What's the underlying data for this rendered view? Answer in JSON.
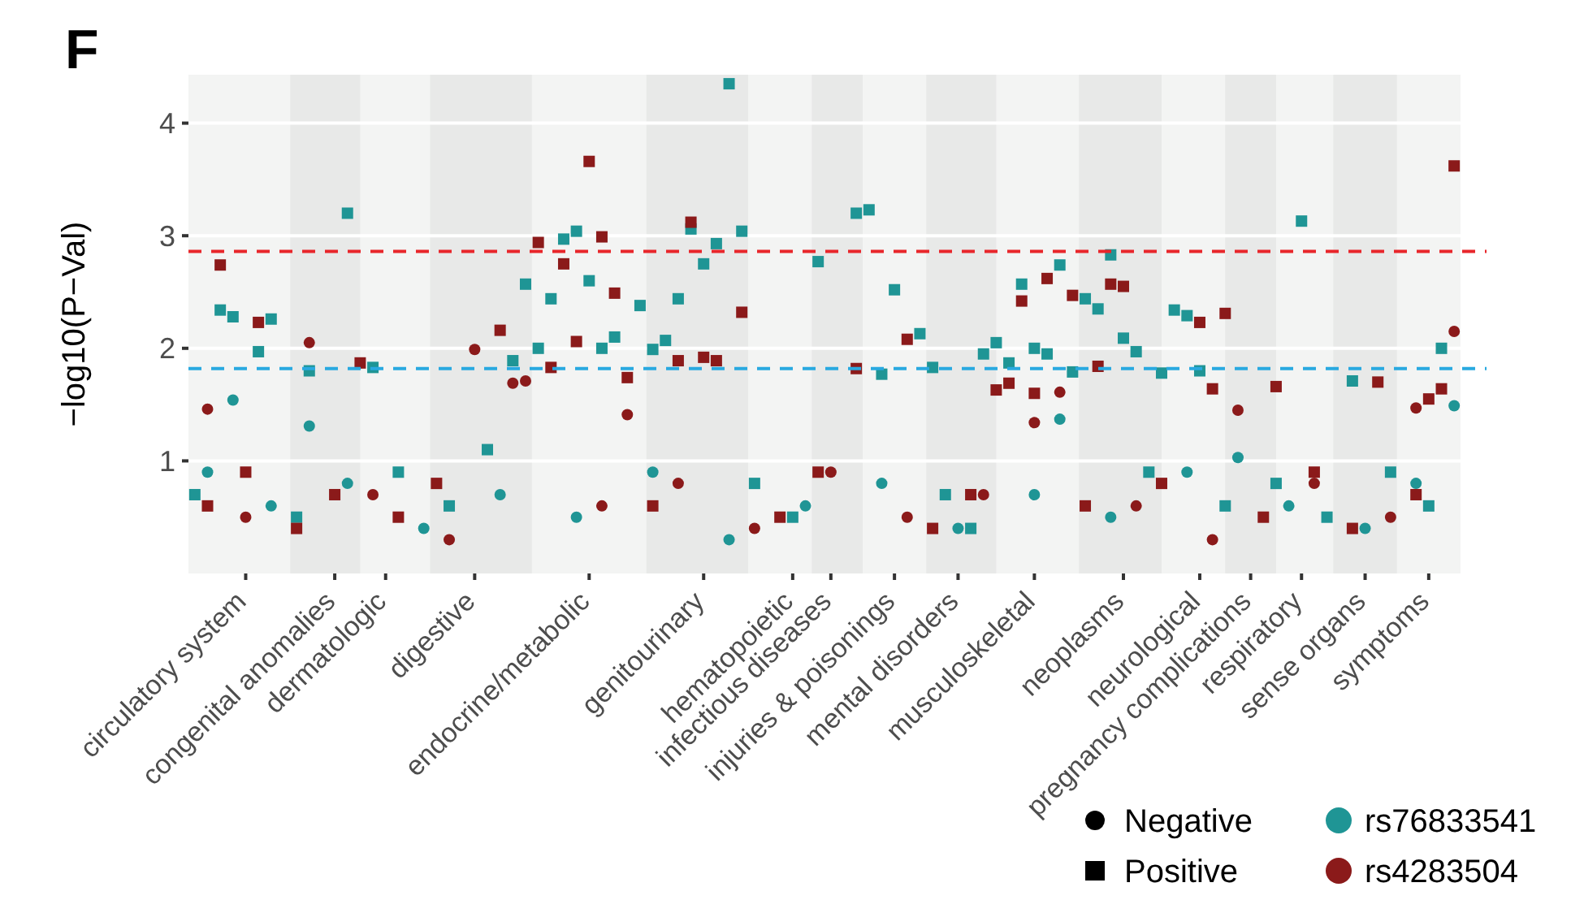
{
  "chart_data": {
    "type": "scatter",
    "title": "F",
    "ylabel": "−log10(P−Val)",
    "categories": [
      null,
      null,
      null,
      null,
      "circulatory system",
      null,
      null,
      null,
      null,
      null,
      null,
      "congenital anomalies",
      null,
      null,
      null,
      "dermatologic",
      null,
      null,
      null,
      null,
      null,
      null,
      "digestive",
      null,
      null,
      null,
      null,
      null,
      null,
      null,
      null,
      "endocrine/metabolic",
      null,
      null,
      null,
      null,
      null,
      null,
      null,
      null,
      "genitourinary",
      null,
      null,
      null,
      null,
      null,
      null,
      "hematopoietic",
      null,
      null,
      "infectious diseases",
      null,
      null,
      null,
      null,
      "injuries & poisonings",
      null,
      null,
      null,
      null,
      "mental disorders",
      null,
      null,
      null,
      null,
      null,
      "musculoskeletal",
      null,
      null,
      null,
      null,
      null,
      null,
      "neoplasms",
      null,
      null,
      null,
      null,
      null,
      "neurological",
      null,
      null,
      null,
      "pregnancy complications",
      null,
      null,
      null,
      "respiratory",
      null,
      null,
      null,
      null,
      "sense organs",
      null,
      null,
      null,
      null,
      "symptoms",
      null,
      null
    ],
    "ylim": [
      0,
      4.43
    ],
    "yticks": [
      1,
      2,
      3,
      4
    ],
    "grid": "y",
    "legend": "bottom right",
    "annotations": [
      "Negative",
      "Positive"
    ],
    "ref_lines": [
      {
        "axis": "y",
        "value": 2.86,
        "color": "#e8262b",
        "line_style": "dashed"
      },
      {
        "axis": "y",
        "value": 1.82,
        "color": "#29a9e0",
        "line_style": "dashed"
      }
    ],
    "series": [
      {
        "name": "rs76833541",
        "type": "scatter",
        "marker": "circle",
        "color": "#1f9595",
        "values": [
          null,
          0.9,
          null,
          1.54,
          null,
          null,
          0.6,
          null,
          null,
          1.31,
          null,
          null,
          0.8,
          null,
          null,
          null,
          null,
          null,
          0.4,
          null,
          null,
          null,
          null,
          null,
          0.7,
          null,
          null,
          null,
          null,
          null,
          0.5,
          null,
          null,
          null,
          null,
          null,
          0.9,
          null,
          null,
          null,
          null,
          null,
          0.3,
          null,
          null,
          null,
          null,
          null,
          0.6,
          null,
          null,
          null,
          null,
          null,
          0.8,
          null,
          null,
          null,
          null,
          null,
          0.4,
          null,
          null,
          null,
          null,
          null,
          0.7,
          null,
          1.37,
          null,
          null,
          null,
          0.5,
          null,
          null,
          null,
          null,
          null,
          0.9,
          null,
          null,
          null,
          1.03,
          null,
          null,
          null,
          0.6,
          null,
          null,
          null,
          null,
          null,
          0.4,
          null,
          null,
          null,
          0.8,
          null,
          null,
          1.49
        ]
      },
      {
        "name": "rs4283504",
        "type": "scatter",
        "marker": "circle",
        "color": "#8b1a1a",
        "values": [
          null,
          1.46,
          null,
          null,
          0.5,
          null,
          null,
          null,
          null,
          2.05,
          null,
          null,
          null,
          null,
          0.7,
          null,
          null,
          null,
          null,
          null,
          0.3,
          null,
          1.99,
          null,
          null,
          1.69,
          1.71,
          null,
          null,
          null,
          null,
          null,
          0.6,
          null,
          1.41,
          null,
          null,
          null,
          0.8,
          null,
          null,
          null,
          null,
          null,
          0.4,
          null,
          null,
          null,
          null,
          null,
          0.9,
          null,
          null,
          null,
          null,
          null,
          0.5,
          null,
          null,
          null,
          null,
          null,
          0.7,
          null,
          null,
          null,
          1.34,
          null,
          1.61,
          null,
          null,
          null,
          null,
          null,
          0.6,
          null,
          null,
          null,
          null,
          null,
          0.3,
          null,
          1.45,
          null,
          null,
          null,
          null,
          null,
          0.8,
          null,
          null,
          null,
          null,
          null,
          0.5,
          null,
          1.47,
          null,
          null,
          2.15
        ]
      },
      {
        "type": "scatter",
        "marker": "square",
        "color": "#1f9595",
        "values": [
          0.7,
          null,
          2.34,
          2.28,
          null,
          1.97,
          2.26,
          null,
          0.5,
          1.8,
          null,
          null,
          3.2,
          null,
          1.83,
          null,
          0.9,
          null,
          null,
          null,
          0.6,
          null,
          null,
          1.1,
          null,
          1.89,
          2.57,
          2.0,
          2.44,
          2.97,
          3.04,
          2.6,
          2.0,
          2.1,
          null,
          2.38,
          1.99,
          2.07,
          2.44,
          3.06,
          2.75,
          2.93,
          4.35,
          3.04,
          0.8,
          null,
          null,
          0.5,
          null,
          2.77,
          null,
          null,
          3.2,
          3.23,
          1.77,
          2.52,
          null,
          2.13,
          1.83,
          0.7,
          null,
          0.4,
          1.95,
          2.05,
          1.87,
          2.57,
          2.0,
          1.95,
          2.74,
          1.79,
          2.44,
          2.35,
          2.83,
          2.09,
          1.97,
          0.9,
          1.78,
          2.34,
          2.29,
          1.8,
          null,
          0.6,
          null,
          null,
          null,
          0.8,
          null,
          3.13,
          null,
          0.5,
          null,
          1.71,
          null,
          null,
          0.9,
          null,
          null,
          0.6,
          2.0,
          null
        ]
      },
      {
        "type": "scatter",
        "marker": "square",
        "color": "#8b1a1a",
        "values": [
          null,
          0.6,
          2.74,
          null,
          0.9,
          2.23,
          null,
          null,
          0.4,
          null,
          null,
          0.7,
          null,
          1.87,
          null,
          null,
          0.5,
          null,
          null,
          0.8,
          null,
          null,
          null,
          null,
          2.16,
          null,
          null,
          2.94,
          1.83,
          2.75,
          2.06,
          3.66,
          2.99,
          2.49,
          1.74,
          null,
          0.6,
          null,
          1.89,
          3.12,
          1.92,
          1.89,
          null,
          2.32,
          null,
          null,
          0.5,
          null,
          null,
          0.9,
          null,
          null,
          1.82,
          null,
          null,
          null,
          2.08,
          null,
          0.4,
          null,
          null,
          0.7,
          null,
          1.63,
          1.69,
          2.42,
          1.6,
          2.62,
          null,
          2.47,
          0.6,
          1.84,
          2.57,
          2.55,
          null,
          null,
          0.8,
          null,
          null,
          2.23,
          1.64,
          2.31,
          null,
          null,
          0.5,
          1.66,
          null,
          null,
          0.9,
          null,
          null,
          0.4,
          null,
          1.7,
          null,
          null,
          0.7,
          1.55,
          1.64,
          3.62
        ]
      }
    ]
  }
}
